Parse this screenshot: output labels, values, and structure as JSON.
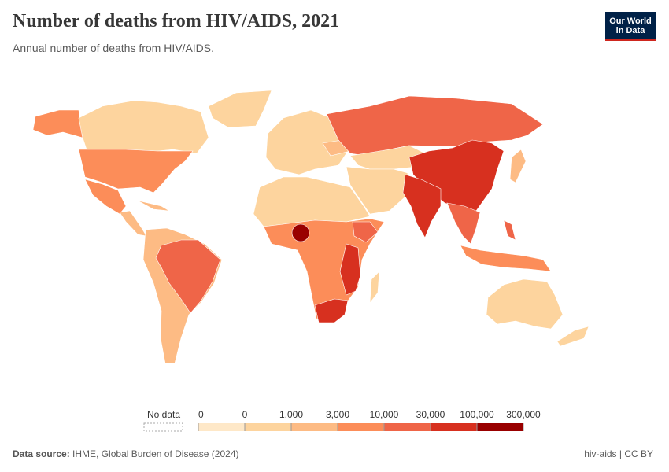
{
  "header": {
    "title": "Number of deaths from HIV/AIDS, 2021",
    "subtitle": "Annual number of deaths from HIV/AIDS.",
    "logo": [
      "Our World",
      "in Data"
    ]
  },
  "legend": {
    "no_data": "No data",
    "ticks": [
      0,
      0,
      {
        "value": 1000,
        "label": "1,000"
      },
      {
        "value": 3000,
        "label": "3,000"
      },
      {
        "value": 10000,
        "label": "10,000"
      },
      {
        "value": 30000,
        "label": "30,000"
      },
      {
        "value": 100000,
        "label": "100,000"
      },
      {
        "value": 300000,
        "label": "300,000"
      }
    ],
    "colors": [
      "#fee8c8",
      "#fdd49e",
      "#fdbb84",
      "#fc8d59",
      "#ef6548",
      "#d7301f",
      "#990000"
    ]
  },
  "footer": {
    "source_label": "Data source:",
    "source": "IHME, Global Burden of Disease (2024)",
    "id": "hiv-aids | CC BY"
  }
}
